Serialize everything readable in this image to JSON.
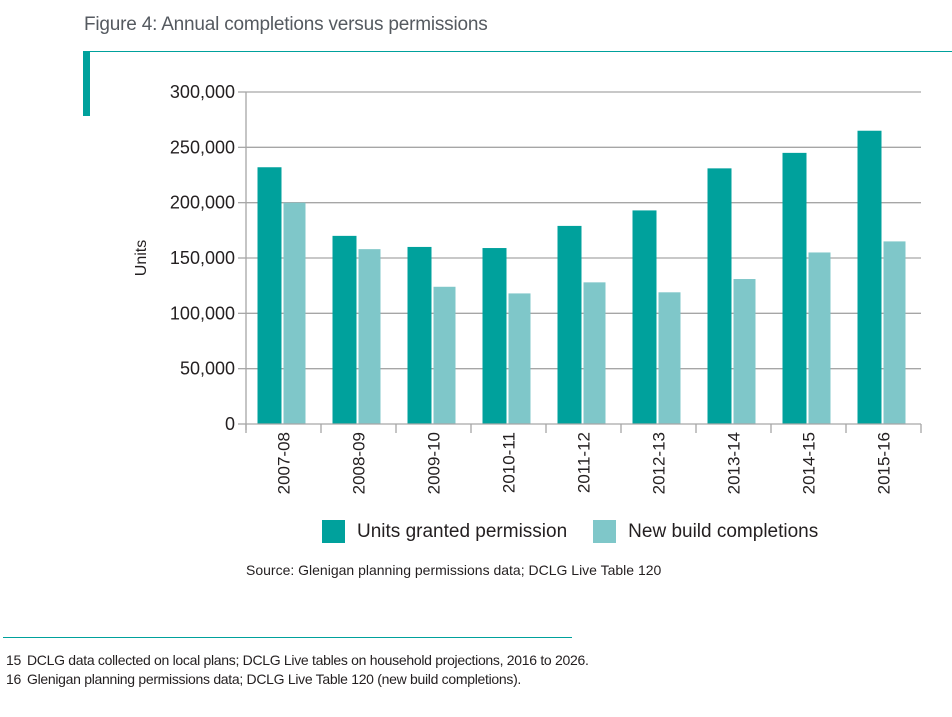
{
  "figure": {
    "title": "Figure 4: Annual completions versus permissions",
    "accent_color": "#00a19c",
    "source": "Source:  Glenigan planning permissions data; DCLG Live Table 120"
  },
  "footnotes": [
    {
      "num": "15",
      "text": "DCLG data collected on local plans; DCLG Live tables on household projections, 2016 to 2026."
    },
    {
      "num": "16",
      "text": "Glenigan planning permissions data; DCLG Live Table 120 (new build completions)."
    }
  ],
  "chart_data": {
    "type": "bar",
    "title": "Figure 4: Annual completions versus permissions",
    "xlabel": "",
    "ylabel": "Units",
    "ylim": [
      0,
      300000
    ],
    "yticks": [
      0,
      50000,
      100000,
      150000,
      200000,
      250000,
      300000
    ],
    "ytick_labels": [
      "0",
      "50,000",
      "100,000",
      "150,000",
      "200,000",
      "250,000",
      "300,000"
    ],
    "grid": true,
    "legend_position": "bottom",
    "categories": [
      "2007-08",
      "2008-09",
      "2009-10",
      "2010-11",
      "2011-12",
      "2012-13",
      "2013-14",
      "2014-15",
      "2015-16"
    ],
    "series": [
      {
        "name": "Units granted permission",
        "color": "#00a19c",
        "values": [
          232000,
          170000,
          160000,
          159000,
          179000,
          193000,
          231000,
          245000,
          265000
        ]
      },
      {
        "name": "New build completions",
        "color": "#7fc7c9",
        "values": [
          200000,
          158000,
          124000,
          118000,
          128000,
          119000,
          131000,
          155000,
          165000
        ]
      }
    ]
  }
}
